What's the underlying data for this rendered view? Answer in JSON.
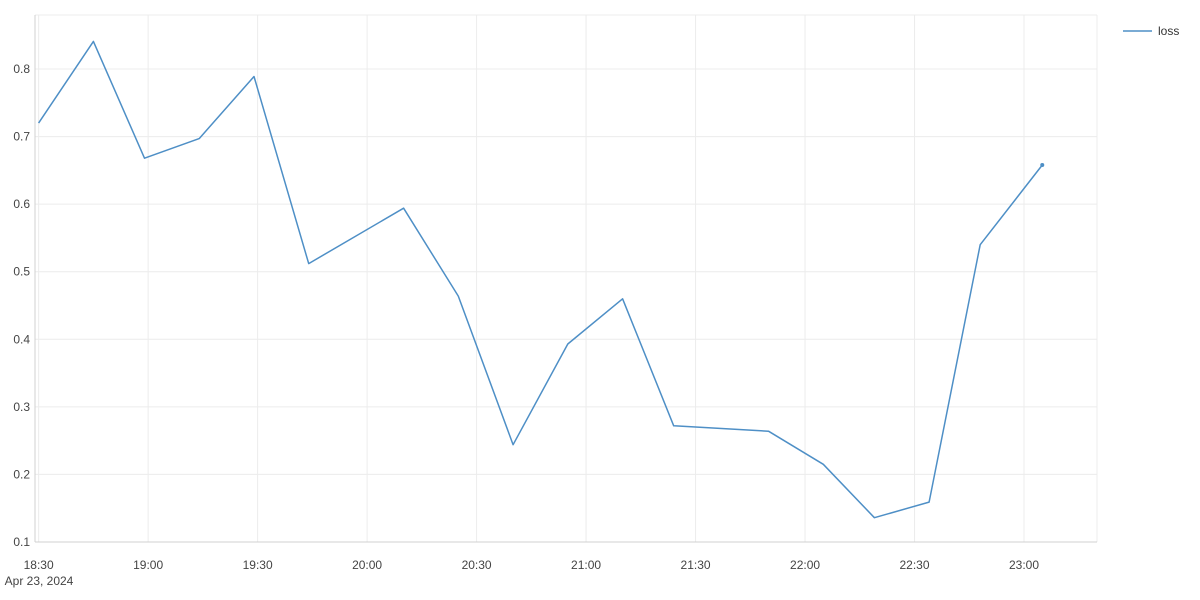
{
  "chart_data": {
    "type": "line",
    "x_tick_labels": [
      "18:30",
      "19:00",
      "19:30",
      "20:00",
      "20:30",
      "21:00",
      "21:30",
      "22:00",
      "22:30",
      "23:00"
    ],
    "x_date_label": "Apr 23, 2024",
    "y_ticks": [
      0.1,
      0.2,
      0.3,
      0.4,
      0.5,
      0.6,
      0.7,
      0.8
    ],
    "y_tick_labels": [
      "0.1",
      "0.2",
      "0.3",
      "0.4",
      "0.5",
      "0.6",
      "0.7",
      "0.8"
    ],
    "ylim": [
      0.1,
      0.88
    ],
    "xlim": [
      "18:29",
      "23:20"
    ],
    "grid": true,
    "legend_position": "top-right",
    "series": [
      {
        "name": "loss",
        "color": "#4e8fc6",
        "x": [
          "18:30",
          "18:45",
          "18:59",
          "19:14",
          "19:29",
          "19:44",
          "20:10",
          "20:25",
          "20:40",
          "20:55",
          "21:10",
          "21:24",
          "21:50",
          "22:05",
          "22:19",
          "22:34",
          "22:48",
          "23:05"
        ],
        "values": [
          0.72,
          0.841,
          0.668,
          0.697,
          0.789,
          0.512,
          0.594,
          0.464,
          0.244,
          0.393,
          0.46,
          0.272,
          0.264,
          0.215,
          0.136,
          0.159,
          0.54,
          0.658
        ]
      }
    ]
  }
}
